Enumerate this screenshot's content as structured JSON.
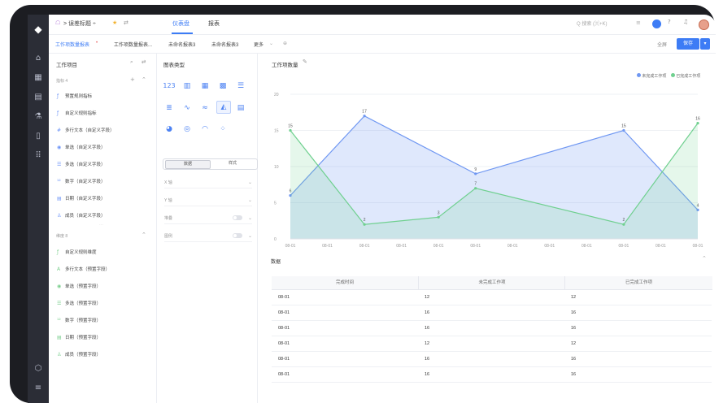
{
  "topbar": {
    "breadcrumb": "> 误差标题 ÷",
    "tabs": [
      "仪表盘",
      "报表"
    ],
    "search_placeholder": "Q 搜索 (⌘+K)"
  },
  "subtabs": [
    "工作项数量报表",
    "工作项数量报表...",
    "未命名报表3",
    "未命名报表3",
    "更多"
  ],
  "save_label": "保存",
  "share_label": "全屏",
  "fields_panel": {
    "title": "工作项目",
    "group1": "指标 4",
    "metrics": [
      "预置规则指标",
      "自定义规则指标",
      "多行文本（自定义字段）",
      "单选（自定义字段）",
      "多选（自定义字段）",
      "数字（自定义字段）",
      "日期（自定义字段）",
      "成员（自定义字段）"
    ],
    "group2": "维度 8",
    "dimensions": [
      "自定义规则维度",
      "多行文本（预置字段）",
      "单选（预置字段）",
      "多选（预置字段）",
      "数字（预置字段）",
      "日期（预置字段）",
      "成员（预置字段）"
    ]
  },
  "chart_panel": {
    "title": "图表类型",
    "seg": [
      "数据",
      "样式"
    ],
    "props": [
      "X 轴",
      "Y 轴",
      "堆叠",
      "图例"
    ]
  },
  "chart": {
    "title": "工作项数量",
    "section_label": "数据",
    "legend_colors": [
      "#6f97f2",
      "#6fd08f"
    ]
  },
  "chart_data": {
    "type": "area",
    "title": "工作项数量",
    "categories": [
      "08-01",
      "08-01",
      "08-01",
      "08-01",
      "08-01",
      "08-01",
      "08-01",
      "08-01",
      "08-01",
      "08-01",
      "08-01",
      "08-01"
    ],
    "series": [
      {
        "name": "未完成工作项",
        "values": [
          6,
          null,
          17,
          null,
          null,
          9,
          null,
          null,
          null,
          15,
          null,
          4
        ]
      },
      {
        "name": "已完成工作项",
        "values": [
          15,
          null,
          2,
          null,
          3,
          7,
          null,
          null,
          null,
          2,
          null,
          16
        ]
      }
    ],
    "ylim": [
      0,
      20
    ],
    "yticks": [
      0,
      5,
      10,
      15,
      20
    ],
    "legend": "top-right",
    "grid": true
  },
  "table": {
    "headers": [
      "完成时间",
      "未完成工作项",
      "已完成工作项"
    ],
    "rows": [
      [
        "08-01",
        "12",
        "12"
      ],
      [
        "08-01",
        "16",
        "16"
      ],
      [
        "08-01",
        "16",
        "16"
      ],
      [
        "08-01",
        "12",
        "12"
      ],
      [
        "08-01",
        "16",
        "16"
      ],
      [
        "08-01",
        "16",
        "16"
      ]
    ]
  }
}
